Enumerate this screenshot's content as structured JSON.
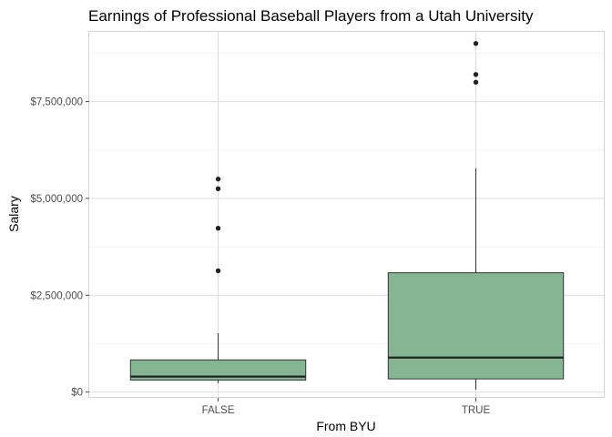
{
  "chart_data": {
    "type": "boxplot",
    "title": "Earnings of Professional Baseball Players from a Utah University",
    "xlabel": "From BYU",
    "ylabel": "Salary",
    "ylim": [
      -150000,
      9300000
    ],
    "y_ticks": [
      0,
      2500000,
      5000000,
      7500000
    ],
    "y_tick_labels": [
      "$0",
      "$2,500,000",
      "$5,000,000",
      "$7,500,000"
    ],
    "grid": true,
    "categories": [
      "FALSE",
      "TRUE"
    ],
    "fill_color": "#85b592",
    "box_stroke": "#333333",
    "boxes": [
      {
        "category": "FALSE",
        "whisker_low": 230000,
        "q1": 310000,
        "median": 400000,
        "q3": 830000,
        "whisker_high": 1520000,
        "outliers": [
          3130000,
          4230000,
          5250000,
          5500000
        ]
      },
      {
        "category": "TRUE",
        "whisker_low": 60000,
        "q1": 340000,
        "median": 890000,
        "q3": 3080000,
        "whisker_high": 5780000,
        "outliers": [
          8000000,
          8200000,
          9000000
        ]
      }
    ]
  }
}
